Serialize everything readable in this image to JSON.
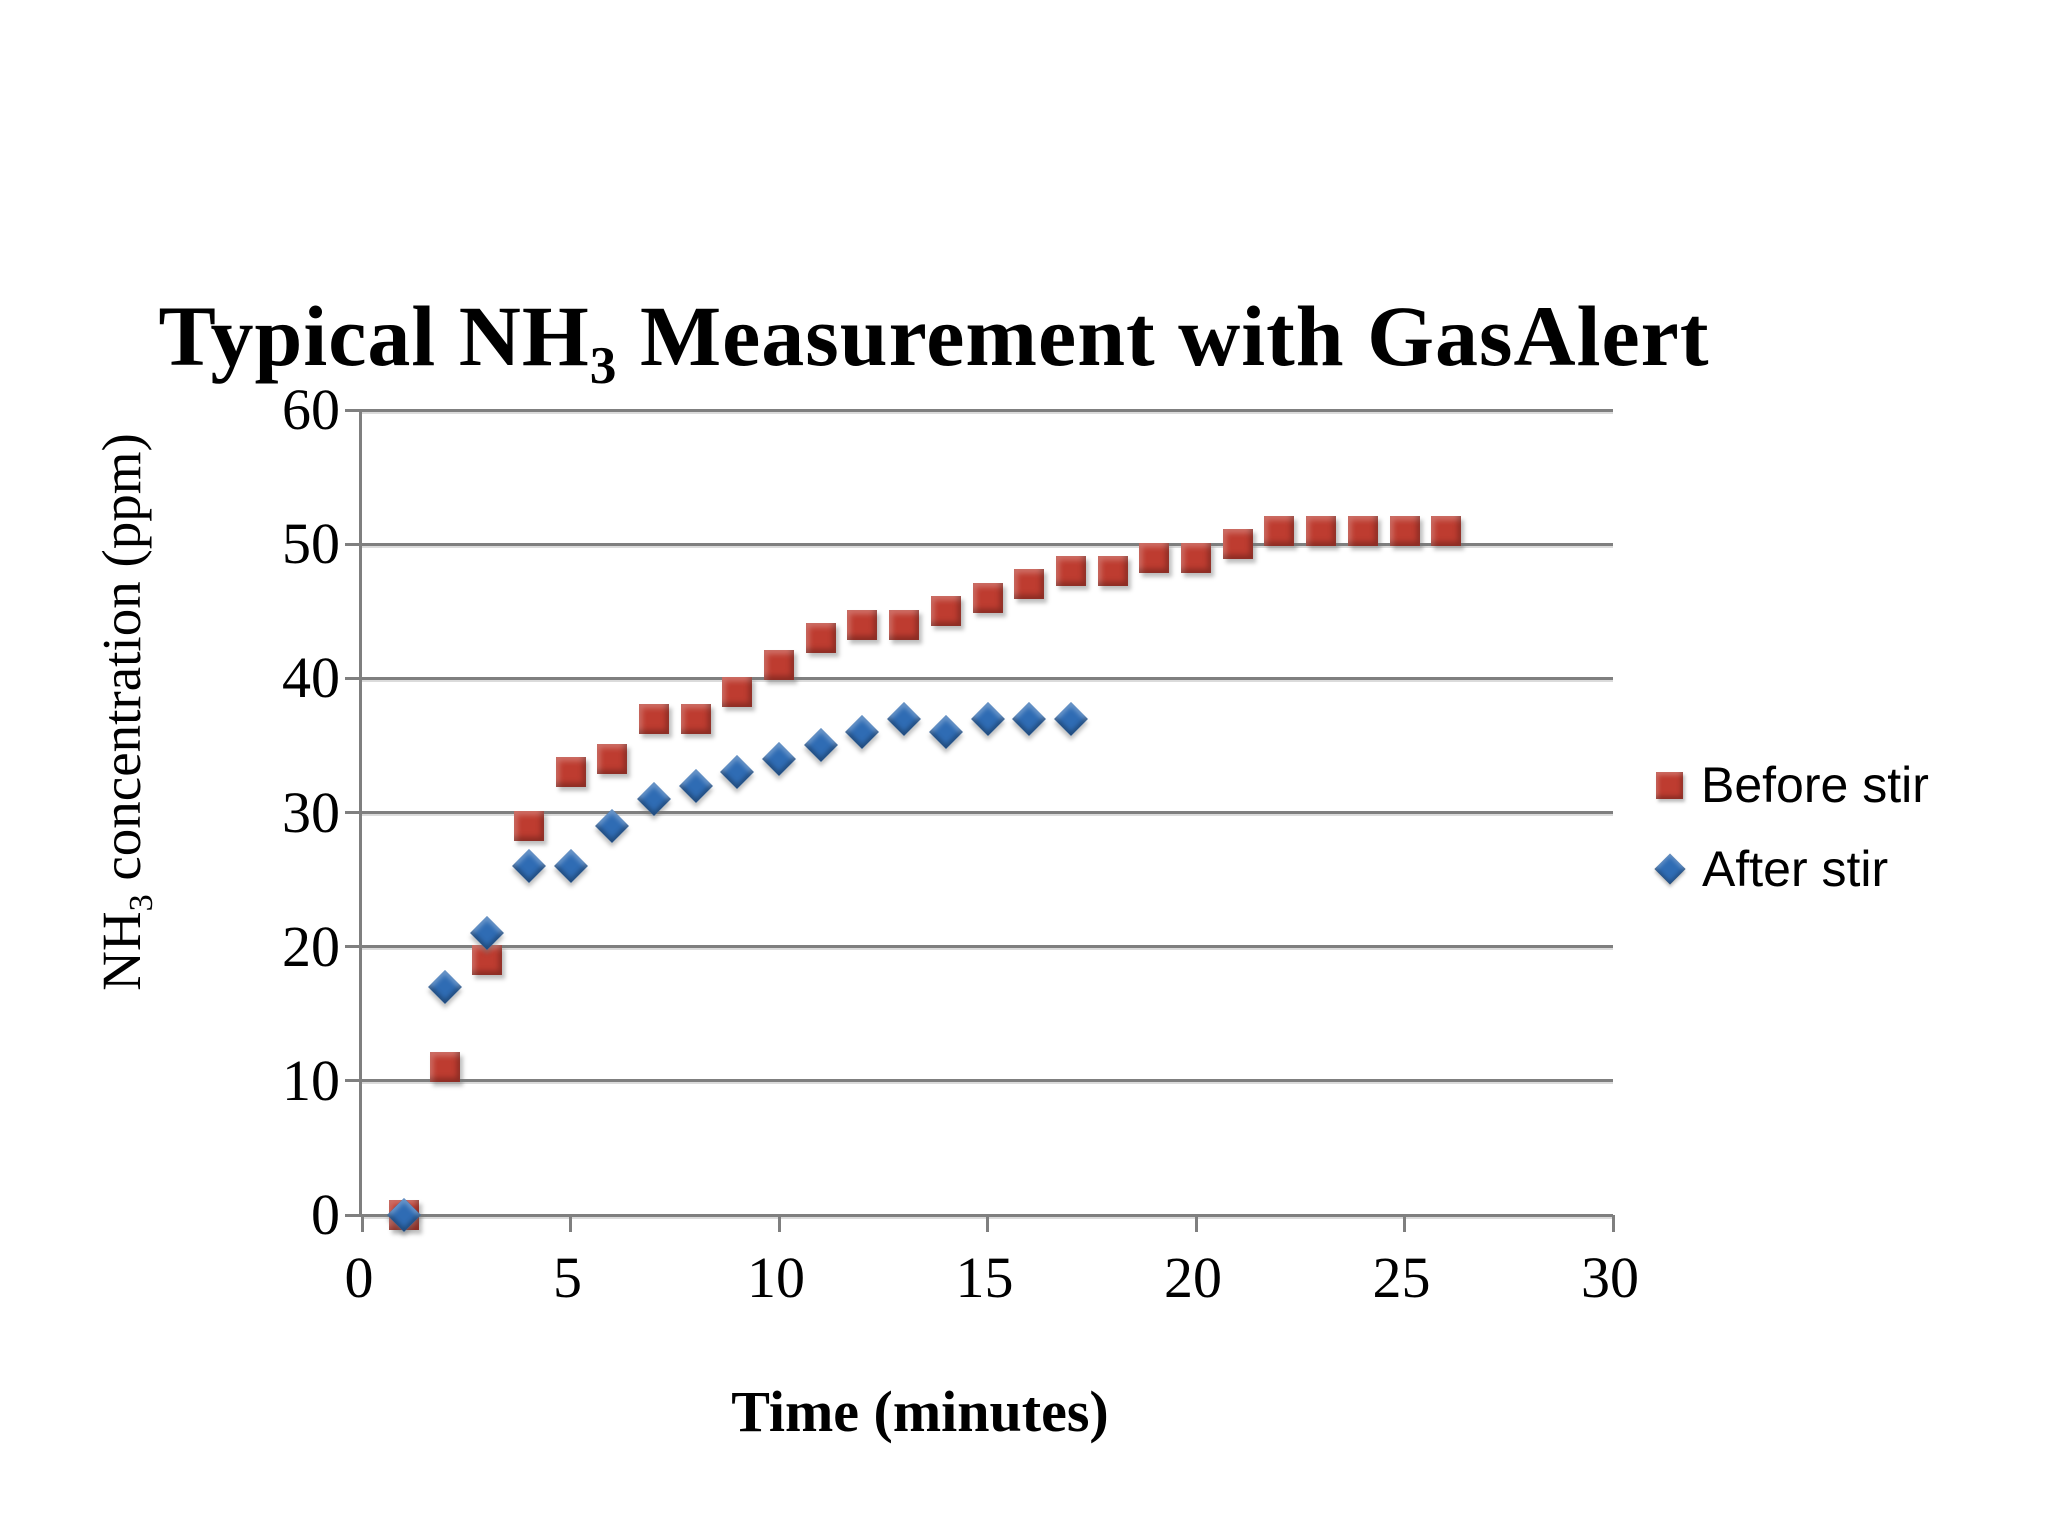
{
  "chart_data": {
    "type": "scatter",
    "title": "Typical NH3 Measurement with GasAlert",
    "title_parts": {
      "prefix": "Typical NH",
      "sub": "3",
      "suffix": " Measurement with GasAlert"
    },
    "xlabel": "Time (minutes)",
    "ylabel": "NH3 concentration (ppm)",
    "ylabel_parts": {
      "prefix": "NH",
      "sub": "3",
      "suffix": " concentration (ppm)"
    },
    "xlim": [
      0,
      30
    ],
    "ylim": [
      0,
      60
    ],
    "xticks": [
      0,
      5,
      10,
      15,
      20,
      25,
      30
    ],
    "yticks": [
      0,
      10,
      20,
      30,
      40,
      50,
      60
    ],
    "grid": "horizontal-only",
    "legend_position": "right-middle",
    "axis_color": "#7f7f7f",
    "background_color": "#ffffff",
    "series": [
      {
        "name": "Before stir",
        "marker": "square",
        "color": "#be3c30",
        "x": [
          1,
          2,
          3,
          4,
          5,
          6,
          7,
          8,
          9,
          10,
          11,
          12,
          13,
          14,
          15,
          16,
          17,
          18,
          19,
          20,
          21,
          22,
          23,
          24,
          25,
          26
        ],
        "y": [
          0,
          11,
          19,
          29,
          33,
          34,
          37,
          37,
          39,
          41,
          43,
          44,
          44,
          45,
          46,
          47,
          48,
          48,
          49,
          49,
          50,
          51,
          51,
          51,
          51,
          51
        ]
      },
      {
        "name": "After stir",
        "marker": "diamond",
        "color": "#2f6cb4",
        "x": [
          1,
          2,
          3,
          4,
          5,
          6,
          7,
          8,
          9,
          10,
          11,
          12,
          13,
          14,
          15,
          16,
          17
        ],
        "y": [
          0,
          17,
          21,
          26,
          26,
          29,
          31,
          32,
          33,
          34,
          35,
          36,
          37,
          36,
          37,
          37,
          37
        ]
      }
    ]
  }
}
